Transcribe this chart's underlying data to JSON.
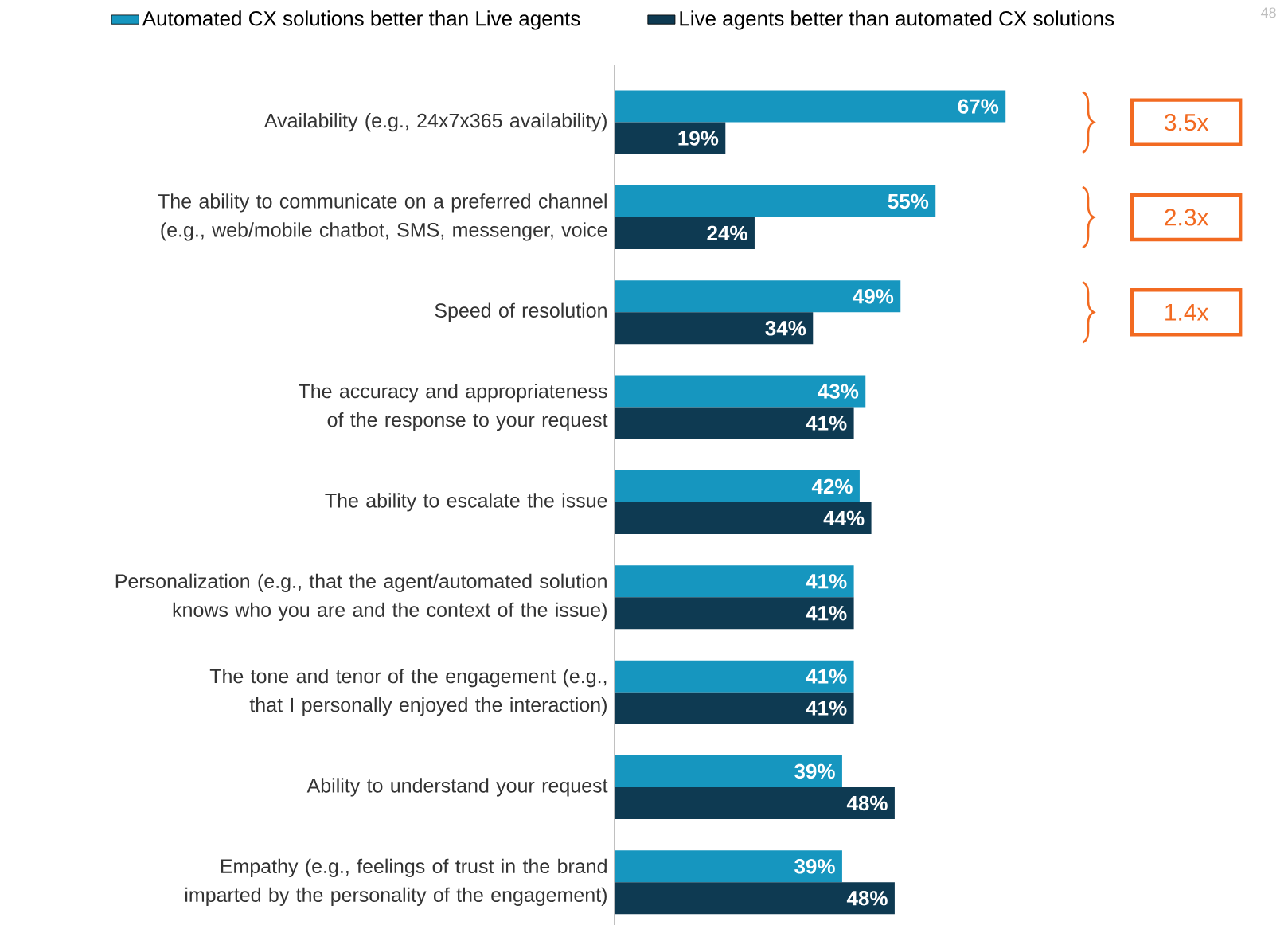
{
  "chart_data": {
    "type": "bar",
    "orientation": "horizontal",
    "legend": "top",
    "categories": [
      "Availability (e.g., 24x7x365 availability)",
      "The ability to communicate on a preferred channel (e.g., web/mobile chatbot, SMS, messenger, voice",
      "Speed of resolution",
      "The accuracy and appropriateness of the response to your request",
      "The ability to escalate the issue",
      "Personalization (e.g., that the agent/automated solution knows who you are and the context of the issue)",
      "The tone and tenor of the engagement (e.g., that I personally enjoyed the interaction)",
      "Ability to understand your request",
      "Empathy (e.g., feelings of trust in the brand imparted by the personality of the engagement)"
    ],
    "series": [
      {
        "name": "Automated CX solutions better than Live agents",
        "color": "#1696bf",
        "values": [
          67,
          55,
          49,
          43,
          42,
          41,
          41,
          39,
          39
        ],
        "value_labels": [
          "67%",
          "55%",
          "49%",
          "43%",
          "42%",
          "41%",
          "41%",
          "39%",
          "39%"
        ]
      },
      {
        "name": "Live agents better than automated CX solutions",
        "color": "#0e3a52",
        "values": [
          19,
          24,
          34,
          41,
          44,
          41,
          41,
          48,
          48
        ],
        "value_labels": [
          "19%",
          "24%",
          "34%",
          "41%",
          "44%",
          "41%",
          "41%",
          "48%",
          "48%"
        ]
      }
    ],
    "annotations": [
      "3.5x",
      "2.3x",
      "1.4x",
      "48"
    ]
  }
}
